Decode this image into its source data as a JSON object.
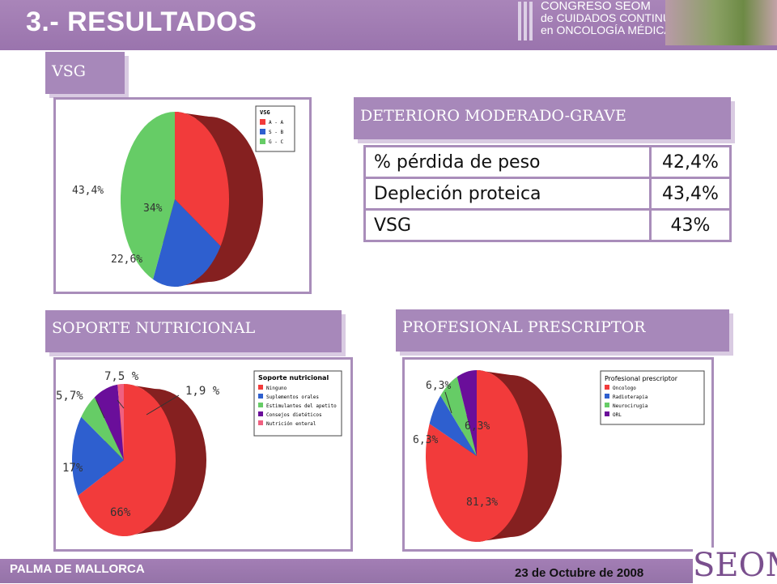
{
  "header": {
    "title": "3.- RESULTADOS",
    "congress_line1": "CONGRESO SEOM",
    "congress_line2": "de CUIDADOS CONTINUOS",
    "congress_line3": "en ONCOLOGÍA MÉDICA"
  },
  "sections": {
    "vsg": "VSG",
    "deterioro": "DETERIORO MODERADO-GRAVE",
    "soporte": "SOPORTE NUTRICIONAL",
    "profesional": "PROFESIONAL PRESCRIPTOR"
  },
  "table": {
    "rows": [
      {
        "label": "% pérdida de peso",
        "value": "42,4%"
      },
      {
        "label": "Depleción proteica",
        "value": "43,4%"
      },
      {
        "label": "VSG",
        "value": "43%"
      }
    ]
  },
  "chart_data": [
    {
      "type": "pie",
      "legend_title": "VSG",
      "legend": [
        "A - A",
        "S - B",
        "G - C"
      ],
      "values": [
        34,
        22.6,
        43.4
      ],
      "labels": [
        "34%",
        "22,6%",
        "43,4%"
      ],
      "colors": [
        "#f23b3b",
        "#2e5fcf",
        "#66cc66"
      ]
    },
    {
      "type": "pie",
      "legend_title": "Soporte nutricional",
      "legend": [
        "Ninguno",
        "Suplementos orales",
        "Estimulantes del apetito",
        "Consejos dietéticos",
        "Nutrición enteral"
      ],
      "values": [
        66,
        17,
        5.7,
        7.5,
        1.9
      ],
      "labels": [
        "66%",
        "17%",
        "5,7%",
        "7,5 %",
        "1,9 %"
      ],
      "colors": [
        "#f23b3b",
        "#2e5fcf",
        "#66cc66",
        "#6a0e9a",
        "#f06080"
      ]
    },
    {
      "type": "pie",
      "legend_title": "Profesional prescriptor",
      "legend": [
        "Oncologo",
        "Radioterapia",
        "Neurocirugia",
        "ORL"
      ],
      "values": [
        81.3,
        6.3,
        6.3,
        6.3
      ],
      "labels": [
        "81,3%",
        "6,3%",
        "6,3%",
        "6,3%"
      ],
      "colors": [
        "#f23b3b",
        "#2e5fcf",
        "#66cc66",
        "#6a0e9a"
      ]
    }
  ],
  "footer": {
    "place": "PALMA DE MALLORCA",
    "date": "23 de Octubre de 2008",
    "brand": "SEOM"
  }
}
